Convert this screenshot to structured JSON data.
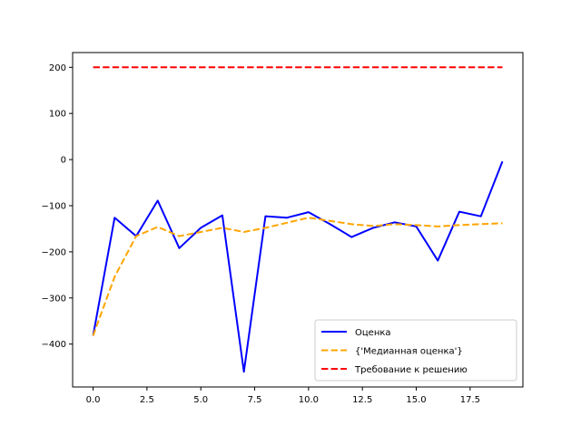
{
  "chart_data": {
    "type": "line",
    "title": "",
    "xlabel": "",
    "ylabel": "",
    "xlim": [
      -0.95,
      19.95
    ],
    "ylim": [
      -493,
      232
    ],
    "grid": false,
    "legend_position": "lower-right",
    "x_ticks": [
      0.0,
      2.5,
      5.0,
      7.5,
      10.0,
      12.5,
      15.0,
      17.5
    ],
    "x_tick_labels": [
      "0.0",
      "2.5",
      "5.0",
      "7.5",
      "10.0",
      "12.5",
      "15.0",
      "17.5"
    ],
    "y_ticks": [
      -400,
      -300,
      -200,
      -100,
      0,
      100,
      200
    ],
    "y_tick_labels": [
      "−400",
      "−300",
      "−200",
      "−100",
      "0",
      "100",
      "200"
    ],
    "series": [
      {
        "name": "Оценка",
        "color": "#0000ff",
        "style": "solid",
        "x": [
          0,
          1,
          2,
          3,
          4,
          5,
          6,
          7,
          8,
          9,
          10,
          11,
          12,
          13,
          14,
          15,
          16,
          17,
          18,
          19
        ],
        "y": [
          -382,
          -126,
          -166,
          -89,
          -192,
          -148,
          -121,
          -460,
          -123,
          -126,
          -114,
          -140,
          -168,
          -148,
          -136,
          -145,
          -219,
          -113,
          -123,
          -4
        ]
      },
      {
        "name": "{'Медианная оценка'}",
        "color": "#ffa500",
        "style": "dashed",
        "x": [
          0,
          1,
          2,
          3,
          4,
          5,
          6,
          7,
          8,
          9,
          10,
          11,
          12,
          13,
          14,
          15,
          16,
          17,
          18,
          19
        ],
        "y": [
          -382,
          -254,
          -166,
          -146,
          -166,
          -157,
          -148,
          -157,
          -148,
          -137,
          -126,
          -133,
          -140,
          -144,
          -140,
          -142,
          -145,
          -142,
          -140,
          -138
        ]
      },
      {
        "name": "Требование к решению",
        "color": "#ff0000",
        "style": "dashed",
        "x": [
          0,
          1,
          2,
          3,
          4,
          5,
          6,
          7,
          8,
          9,
          10,
          11,
          12,
          13,
          14,
          15,
          16,
          17,
          18,
          19
        ],
        "y": [
          200,
          200,
          200,
          200,
          200,
          200,
          200,
          200,
          200,
          200,
          200,
          200,
          200,
          200,
          200,
          200,
          200,
          200,
          200,
          200
        ]
      }
    ]
  }
}
